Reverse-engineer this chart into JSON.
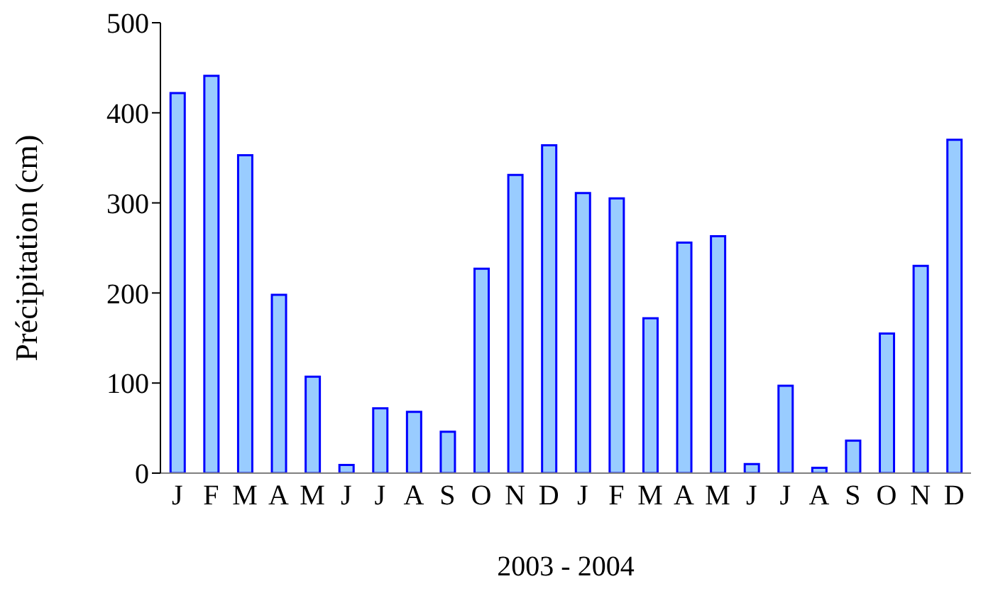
{
  "chart_data": {
    "type": "bar",
    "xlabel": "2003 - 2004",
    "ylabel": "Précipitation (cm)",
    "categories": [
      "J",
      "F",
      "M",
      "A",
      "M",
      "J",
      "J",
      "A",
      "S",
      "O",
      "N",
      "D",
      "J",
      "F",
      "M",
      "A",
      "M",
      "J",
      "J",
      "A",
      "S",
      "O",
      "N",
      "D"
    ],
    "values": [
      422,
      441,
      353,
      198,
      107,
      9,
      72,
      68,
      46,
      227,
      331,
      364,
      311,
      305,
      172,
      256,
      263,
      10,
      97,
      6,
      36,
      155,
      230,
      370
    ],
    "color": "#99ccff",
    "ylim": [
      0,
      500
    ],
    "yticks": [
      0,
      100,
      200,
      300,
      400,
      500
    ],
    "grid": false,
    "legend": false
  }
}
